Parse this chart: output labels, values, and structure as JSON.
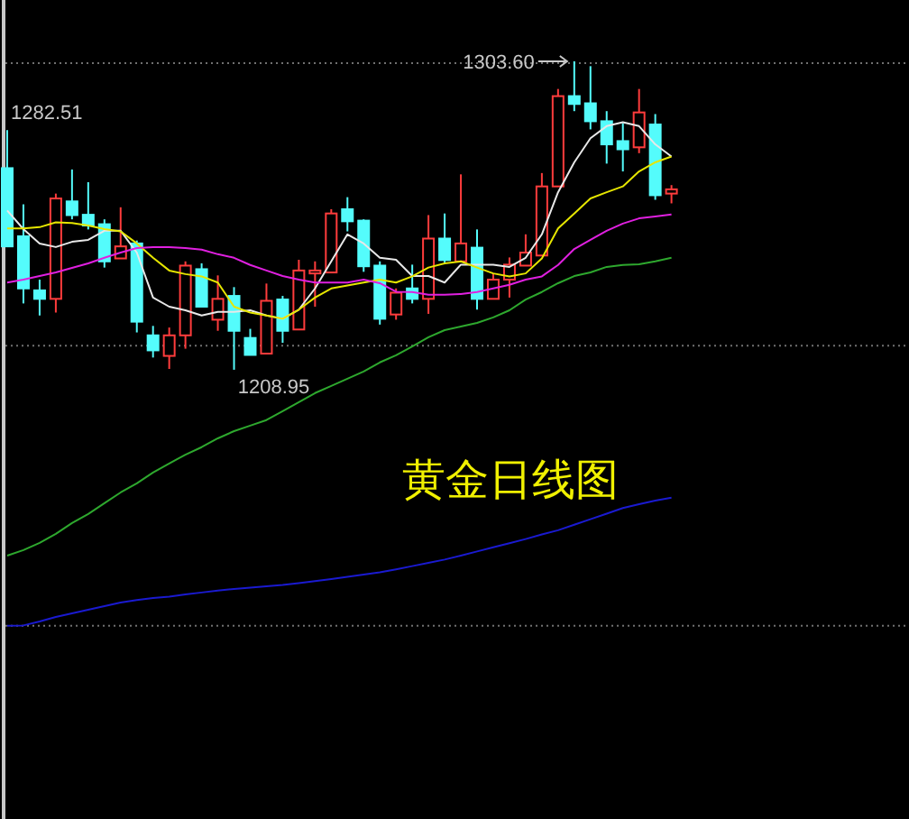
{
  "chart_data": {
    "type": "candlestick",
    "title": "黄金日线图",
    "categories": [
      null,
      null,
      null,
      null,
      null,
      null,
      null,
      null,
      null,
      null,
      null,
      null,
      null,
      null,
      null,
      null,
      null,
      null,
      null,
      null,
      null,
      null,
      null,
      null,
      null,
      null,
      null,
      null,
      null,
      null,
      null,
      null,
      null,
      null,
      null,
      null,
      null,
      null,
      null,
      null,
      null,
      null
    ],
    "ylim": [
      1071.1,
      1322.4
    ],
    "ohlc": [
      [
        1270.8,
        1282.51,
        1246.8,
        1246.8
      ],
      [
        1249.9,
        1259.7,
        1229.3,
        1233.9
      ],
      [
        1233.3,
        1236.6,
        1225.6,
        1230.7
      ],
      [
        1230.7,
        1263.0,
        1226.5,
        1261.5
      ],
      [
        1260.6,
        1270.4,
        1255.1,
        1256.4
      ],
      [
        1256.5,
        1266.5,
        1252.0,
        1253.2
      ],
      [
        1253.6,
        1255.1,
        1240.3,
        1242.2
      ],
      [
        1243.1,
        1258.8,
        1243.1,
        1246.8
      ],
      [
        1247.7,
        1248.6,
        1220.4,
        1223.7
      ],
      [
        1219.5,
        1222.4,
        1212.7,
        1214.9
      ],
      [
        1213.2,
        1221.9,
        1209.2,
        1219.5
      ],
      [
        1219.5,
        1242.2,
        1215.4,
        1240.9
      ],
      [
        1239.8,
        1241.6,
        1228.3,
        1228.3
      ],
      [
        1224.3,
        1237.9,
        1220.9,
        1230.7
      ],
      [
        1231.6,
        1234.3,
        1208.95,
        1220.9
      ],
      [
        1218.7,
        1221.5,
        1213.5,
        1213.5
      ],
      [
        1213.9,
        1235.4,
        1213.9,
        1230.1
      ],
      [
        1230.5,
        1231.6,
        1217.2,
        1220.9
      ],
      [
        1221.3,
        1242.7,
        1221.3,
        1239.4
      ],
      [
        1238.5,
        1242.2,
        1228.3,
        1239.4
      ],
      [
        1238.8,
        1258.2,
        1238.8,
        1256.9
      ],
      [
        1258.2,
        1261.9,
        1251.4,
        1254.5
      ],
      [
        1254.7,
        1255.1,
        1239.0,
        1240.7
      ],
      [
        1240.9,
        1242.2,
        1222.8,
        1224.6
      ],
      [
        1225.9,
        1233.9,
        1224.3,
        1232.6
      ],
      [
        1233.9,
        1241.2,
        1229.3,
        1230.7
      ],
      [
        1230.7,
        1256.4,
        1226.1,
        1249.2
      ],
      [
        1249.2,
        1256.9,
        1241.6,
        1242.6
      ],
      [
        1242.2,
        1268.9,
        1242.2,
        1247.7
      ],
      [
        1246.4,
        1252.0,
        1227.4,
        1230.7
      ],
      [
        1230.7,
        1238.5,
        1230.7,
        1236.6
      ],
      [
        1236.6,
        1243.4,
        1231.1,
        1241.2
      ],
      [
        1240.9,
        1250.5,
        1240.9,
        1244.9
      ],
      [
        1244.0,
        1269.3,
        1244.0,
        1265.2
      ],
      [
        1265.2,
        1295.1,
        1265.2,
        1292.9
      ],
      [
        1292.9,
        1303.6,
        1288.3,
        1290.5
      ],
      [
        1290.7,
        1302.1,
        1282.7,
        1285.2
      ],
      [
        1285.2,
        1288.3,
        1272.2,
        1278.1
      ],
      [
        1279.1,
        1284.6,
        1269.8,
        1276.6
      ],
      [
        1277.2,
        1295.1,
        1275.4,
        1287.9
      ],
      [
        1284.2,
        1287.4,
        1261.1,
        1262.5
      ],
      [
        1263.0,
        1265.6,
        1260.0,
        1264.3
      ]
    ],
    "colors": [
      "#54fcfc",
      "#54fcfc",
      "#54fcfc",
      "#ff3c3c",
      "#54fcfc",
      "#54fcfc",
      "#54fcfc",
      "#ff3c3c",
      "#54fcfc",
      "#54fcfc",
      "#ff3c3c",
      "#ff3c3c",
      "#54fcfc",
      "#ff3c3c",
      "#54fcfc",
      "#54fcfc",
      "#ff3c3c",
      "#54fcfc",
      "#ff3c3c",
      "#ff3c3c",
      "#ff3c3c",
      "#54fcfc",
      "#54fcfc",
      "#54fcfc",
      "#ff3c3c",
      "#54fcfc",
      "#ff3c3c",
      "#54fcfc",
      "#ff3c3c",
      "#54fcfc",
      "#ff3c3c",
      "#ff3c3c",
      "#ff3c3c",
      "#ff3c3c",
      "#ff3c3c",
      "#54fcfc",
      "#54fcfc",
      "#54fcfc",
      "#54fcfc",
      "#ff3c3c",
      "#54fcfc",
      "#ff3c3c"
    ],
    "series": [
      {
        "type": "line",
        "color": "#e8e8e8",
        "values": [
          1257.8,
          1252.1,
          1247.7,
          1246.6,
          1248.2,
          1248.8,
          1251.6,
          1251.6,
          1244.9,
          1231.1,
          1228.3,
          1227.2,
          1225.6,
          1226.7,
          1226.7,
          1227.2,
          1225.6,
          1224.6,
          1227.4,
          1233.9,
          1242.2,
          1250.5,
          1247.7,
          1243.3,
          1242.7,
          1237.7,
          1237.7,
          1235.7,
          1241.2,
          1241.2,
          1241.2,
          1240.5,
          1243.3,
          1250.5,
          1263.4,
          1272.6,
          1280.0,
          1283.7,
          1284.9,
          1283.7,
          1278.1,
          1274.4
        ]
      },
      {
        "type": "line",
        "color": "#e6e600",
        "values": [
          1252.3,
          1252.3,
          1252.7,
          1254.2,
          1254.0,
          1253.2,
          1252.1,
          1251.4,
          1247.7,
          1243.3,
          1239.4,
          1238.3,
          1237.6,
          1235.7,
          1228.3,
          1226.5,
          1225.6,
          1224.6,
          1227.4,
          1231.1,
          1233.9,
          1234.8,
          1235.7,
          1236.6,
          1235.7,
          1237.6,
          1240.3,
          1241.6,
          1242.2,
          1240.3,
          1238.5,
          1237.6,
          1238.5,
          1243.1,
          1252.3,
          1256.9,
          1261.5,
          1263.4,
          1265.2,
          1269.8,
          1272.6,
          1274.4
        ]
      },
      {
        "type": "line",
        "color": "#e020e0",
        "values": [
          1235.7,
          1236.6,
          1237.7,
          1238.8,
          1240.2,
          1241.6,
          1243.3,
          1244.9,
          1246.3,
          1246.6,
          1246.6,
          1246.3,
          1245.8,
          1244.4,
          1243.3,
          1241.1,
          1239.4,
          1237.7,
          1236.6,
          1235.7,
          1235.7,
          1235.7,
          1236.6,
          1235.5,
          1232.9,
          1232.8,
          1232.0,
          1232.0,
          1232.2,
          1232.8,
          1233.9,
          1235.0,
          1236.6,
          1237.6,
          1241.1,
          1246.0,
          1248.8,
          1251.6,
          1253.8,
          1255.4,
          1256.0,
          1256.6
        ]
      },
      {
        "type": "line",
        "color": "#2ea82e",
        "values": [
          1151.9,
          1153.6,
          1155.8,
          1158.6,
          1161.9,
          1164.7,
          1168.0,
          1171.3,
          1174.1,
          1177.4,
          1180.2,
          1182.9,
          1185.2,
          1187.9,
          1190.1,
          1191.8,
          1193.5,
          1196.2,
          1199.0,
          1201.8,
          1204.0,
          1206.2,
          1208.4,
          1211.2,
          1213.4,
          1216.1,
          1218.9,
          1221.1,
          1222.2,
          1223.3,
          1225.0,
          1227.2,
          1230.5,
          1232.8,
          1235.5,
          1237.7,
          1238.8,
          1240.5,
          1241.1,
          1241.3,
          1242.2,
          1243.3
        ]
      },
      {
        "type": "line",
        "color": "#1a1ad0",
        "values": [
          1130.4,
          1130.5,
          1131.7,
          1133.1,
          1134.2,
          1135.3,
          1136.4,
          1137.5,
          1138.3,
          1138.9,
          1139.3,
          1140.0,
          1140.6,
          1141.2,
          1141.7,
          1142.1,
          1142.5,
          1142.9,
          1143.5,
          1144.1,
          1144.7,
          1145.4,
          1146.1,
          1146.8,
          1147.7,
          1148.7,
          1149.7,
          1150.7,
          1151.9,
          1153.2,
          1154.5,
          1155.7,
          1157.0,
          1158.4,
          1159.7,
          1161.4,
          1163.1,
          1164.8,
          1166.5,
          1167.7,
          1168.8,
          1169.7
        ]
      }
    ],
    "ref_lines": [
      {
        "axis": "y",
        "value": 1303.0,
        "color": "#707070",
        "line_style": "dotted"
      },
      {
        "axis": "y",
        "value": 1216.3,
        "color": "#707070",
        "line_style": "dotted"
      },
      {
        "axis": "y",
        "value": 1130.4,
        "color": "#707070",
        "line_style": "dotted"
      }
    ],
    "annotations": [
      {
        "text": "1303.60",
        "y": 1303.6
      },
      "1282.51",
      "1208.95"
    ]
  }
}
